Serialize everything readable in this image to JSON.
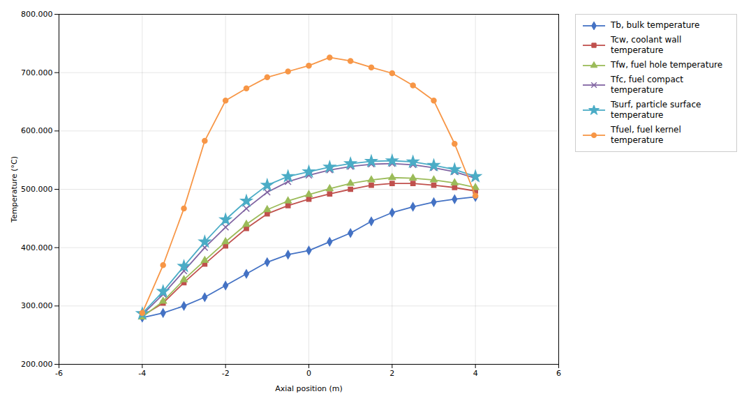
{
  "chart_data": {
    "type": "line",
    "xlabel": "Axial position (m)",
    "ylabel": "Temperature (°C)",
    "x": [
      -4,
      -3.5,
      -3,
      -2.5,
      -2,
      -1.5,
      -1,
      -0.5,
      0,
      0.5,
      1,
      1.5,
      2,
      2.5,
      3,
      3.5,
      4
    ],
    "series": [
      {
        "name": "Tb, bulk temperature",
        "color": "#4472C4",
        "marker": "diamond",
        "values": [
          280,
          288,
          300,
          315,
          335,
          355,
          375,
          388,
          395,
          410,
          425,
          445,
          460,
          470,
          478,
          483,
          487
        ]
      },
      {
        "name": "Tcw, coolant wall\ntemperature",
        "color": "#C0504D",
        "marker": "square",
        "values": [
          283,
          305,
          340,
          372,
          403,
          433,
          458,
          472,
          483,
          492,
          500,
          507,
          510,
          510,
          507,
          503,
          497
        ]
      },
      {
        "name": "Tfw, fuel hole temperature",
        "color": "#9BBB59",
        "marker": "triangle",
        "values": [
          281,
          308,
          345,
          378,
          410,
          440,
          465,
          480,
          491,
          501,
          510,
          516,
          520,
          519,
          516,
          511,
          503
        ]
      },
      {
        "name": "Tfc, fuel compact\ntemperature",
        "color": "#8064A2",
        "marker": "x",
        "values": [
          285,
          320,
          360,
          400,
          435,
          467,
          495,
          513,
          524,
          533,
          539,
          543,
          544,
          542,
          537,
          530,
          519
        ]
      },
      {
        "name": "Tsurf, particle surface\ntemperature",
        "color": "#4BACC6",
        "marker": "star",
        "values": [
          287,
          325,
          368,
          410,
          448,
          480,
          507,
          522,
          530,
          538,
          544,
          548,
          549,
          547,
          541,
          534,
          522
        ]
      },
      {
        "name": "Tfuel, fuel kernel temperature",
        "color": "#F79646",
        "marker": "circle",
        "values": [
          288,
          370,
          467,
          583,
          652,
          673,
          692,
          702,
          712,
          726,
          720,
          709,
          699,
          678,
          652,
          578,
          489
        ]
      }
    ],
    "xlim": [
      -6,
      6
    ],
    "xticks": [
      -6,
      -4,
      -2,
      0,
      2,
      4,
      6
    ],
    "ylim": [
      200,
      800
    ],
    "yticks": [
      {
        "value": 200,
        "label": "200.000"
      },
      {
        "value": 300,
        "label": "300.000"
      },
      {
        "value": 400,
        "label": "400.000"
      },
      {
        "value": 500,
        "label": "500.000"
      },
      {
        "value": 600,
        "label": "600.000"
      },
      {
        "value": 700,
        "label": "700.000"
      },
      {
        "value": 800,
        "label": "800.000"
      }
    ],
    "grid": true,
    "legend": "upper right"
  }
}
